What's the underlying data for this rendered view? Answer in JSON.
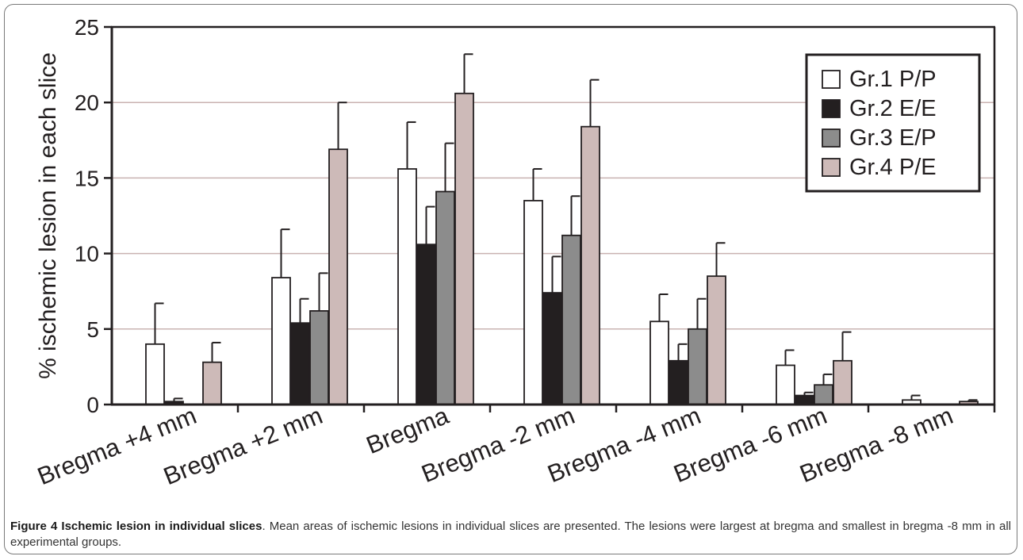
{
  "chart_data": {
    "type": "bar",
    "ylabel": "% ischemic lesion in each slice",
    "xlabel": "",
    "ylim": [
      0,
      25
    ],
    "yticks": [
      0,
      5,
      10,
      15,
      20,
      25
    ],
    "grid": true,
    "legend_position": "top-right",
    "categories": [
      "Bregma +4 mm",
      "Bregma +2 mm",
      "Bregma",
      "Bregma -2 mm",
      "Bregma -4 mm",
      "Bregma -6 mm",
      "Bregma -8 mm"
    ],
    "series": [
      {
        "name": "Gr.1 P/P",
        "color": "#ffffff",
        "values": [
          4.0,
          8.4,
          15.6,
          13.5,
          5.5,
          2.6,
          0.3
        ],
        "errors": [
          2.7,
          3.2,
          3.1,
          2.1,
          1.8,
          1.0,
          0.3
        ]
      },
      {
        "name": "Gr.2 E/E",
        "color": "#231f20",
        "values": [
          0.2,
          5.4,
          10.6,
          7.4,
          2.9,
          0.6,
          0.0
        ],
        "errors": [
          0.2,
          1.6,
          2.5,
          2.4,
          1.1,
          0.2,
          0.0
        ]
      },
      {
        "name": "Gr.3 E/P",
        "color": "#8c8c8c",
        "values": [
          0.0,
          6.2,
          14.1,
          11.2,
          5.0,
          1.3,
          0.0
        ],
        "errors": [
          0.0,
          2.5,
          3.2,
          2.6,
          2.0,
          0.7,
          0.0
        ]
      },
      {
        "name": "Gr.4 P/E",
        "color": "#cdbab8",
        "values": [
          2.8,
          16.9,
          20.6,
          18.4,
          8.5,
          2.9,
          0.2
        ],
        "errors": [
          1.3,
          3.1,
          2.6,
          3.1,
          2.2,
          1.9,
          0.1
        ]
      }
    ]
  },
  "caption": {
    "label": "Figure 4 Ischemic lesion in individual slices",
    "text": ". Mean areas of ischemic lesions in individual slices are presented. The lesions were largest at bregma and smallest in bregma -8 mm in all experimental groups."
  }
}
